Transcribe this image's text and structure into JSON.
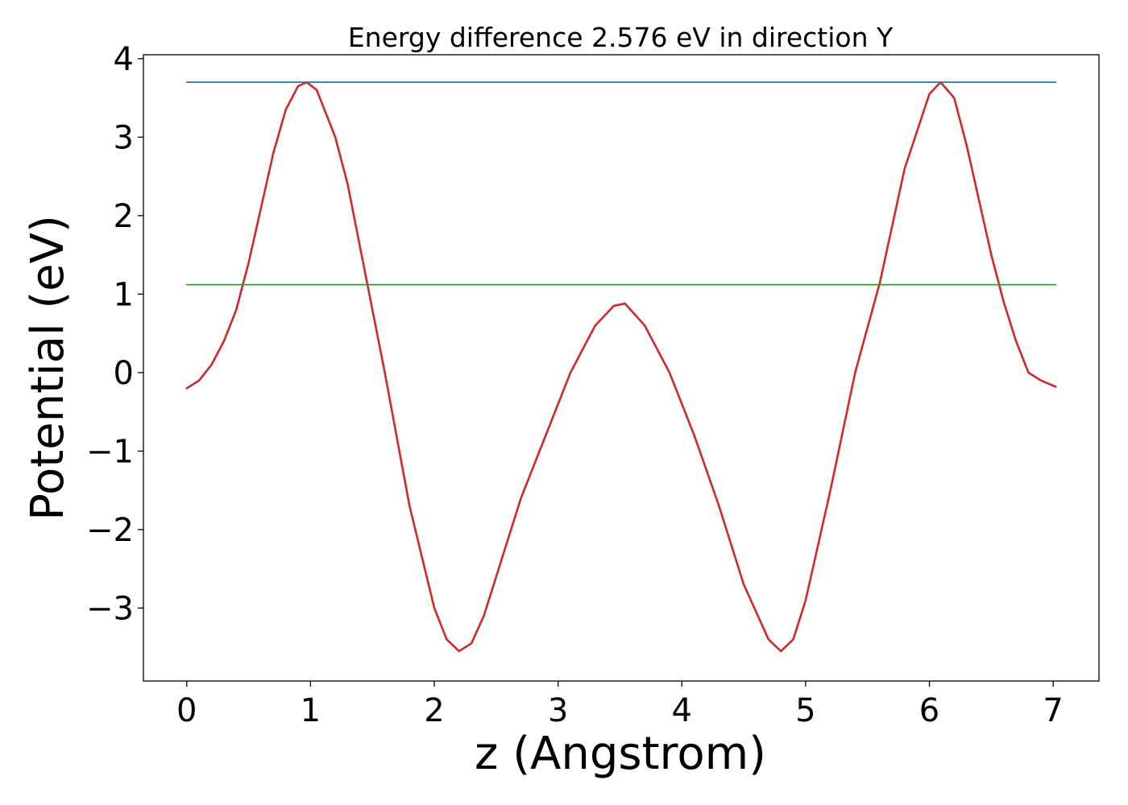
{
  "chart_data": {
    "type": "line",
    "title": "Energy difference 2.576 eV in direction Y",
    "xlabel": "z (Angstrom)",
    "ylabel": "Potential (eV)",
    "xlim": [
      -0.35,
      7.37
    ],
    "ylim": [
      -3.93,
      4.05
    ],
    "xticks": [
      0,
      1,
      2,
      3,
      4,
      5,
      6,
      7
    ],
    "yticks": [
      -3,
      -2,
      -1,
      0,
      1,
      2,
      3,
      4
    ],
    "xtick_labels": [
      "0",
      "1",
      "2",
      "3",
      "4",
      "5",
      "6",
      "7"
    ],
    "ytick_labels": [
      "−3",
      "−2",
      "−1",
      "0",
      "1",
      "2",
      "3",
      "4"
    ],
    "grid": false,
    "legend": "none",
    "series": [
      {
        "color": "#d62728",
        "x": [
          0.0,
          0.1,
          0.2,
          0.3,
          0.4,
          0.5,
          0.6,
          0.7,
          0.8,
          0.9,
          0.97,
          1.05,
          1.2,
          1.3,
          1.45,
          1.6,
          1.8,
          2.0,
          2.1,
          2.2,
          2.3,
          2.4,
          2.5,
          2.7,
          2.9,
          3.1,
          3.3,
          3.45,
          3.54,
          3.7,
          3.9,
          4.1,
          4.3,
          4.5,
          4.7,
          4.8,
          4.9,
          5.0,
          5.2,
          5.4,
          5.6,
          5.8,
          6.0,
          6.09,
          6.2,
          6.3,
          6.4,
          6.5,
          6.6,
          6.7,
          6.8,
          6.9,
          7.02
        ],
        "values": [
          -0.2,
          -0.1,
          0.1,
          0.4,
          0.8,
          1.4,
          2.1,
          2.8,
          3.35,
          3.65,
          3.7,
          3.6,
          3.0,
          2.4,
          1.2,
          0.0,
          -1.7,
          -3.0,
          -3.4,
          -3.55,
          -3.45,
          -3.1,
          -2.6,
          -1.6,
          -0.8,
          0.0,
          0.6,
          0.85,
          0.88,
          0.6,
          0.0,
          -0.8,
          -1.7,
          -2.7,
          -3.4,
          -3.55,
          -3.4,
          -2.9,
          -1.5,
          0.0,
          1.15,
          2.6,
          3.55,
          3.7,
          3.5,
          2.9,
          2.2,
          1.5,
          0.9,
          0.4,
          0.0,
          -0.1,
          -0.18
        ]
      },
      {
        "color": "#1f77b4",
        "x": [
          0.0,
          7.02
        ],
        "values": [
          3.7,
          3.7
        ]
      },
      {
        "color": "#2ca02c",
        "x": [
          0.0,
          7.02
        ],
        "values": [
          1.12,
          1.12
        ]
      }
    ]
  }
}
